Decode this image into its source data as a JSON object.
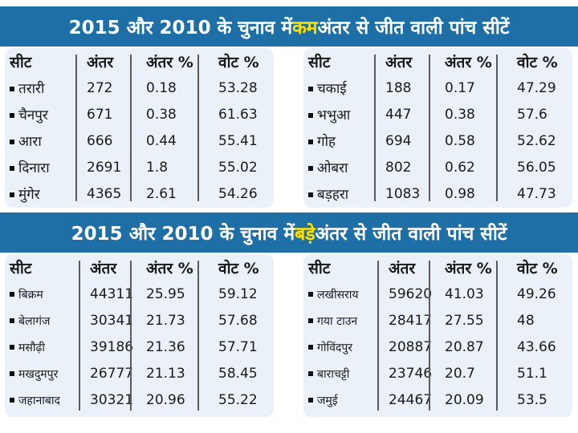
{
  "banners": [
    {
      "pre": "2015 और 2010 के चुनाव में ",
      "highlight": "कम",
      "post": " अंतर से जीत वाली पांच सीटें"
    },
    {
      "pre": "2015 और 2010 के चुनाव में ",
      "highlight": "बड़े",
      "post": " अंतर से जीत वाली पांच सीटें"
    }
  ],
  "headers": [
    "सीट",
    "अंतर",
    "अंतर %",
    "वोट %"
  ],
  "tables": [
    {
      "rows": [
        [
          "तरारी",
          "272",
          "0.18",
          "53.28"
        ],
        [
          "चैनपुर",
          "671",
          "0.38",
          "61.63"
        ],
        [
          "आरा",
          "666",
          "0.44",
          "55.41"
        ],
        [
          "दिनारा",
          "2691",
          "1.8",
          "55.02"
        ],
        [
          "मुंगेर",
          "4365",
          "2.61",
          "54.26"
        ]
      ]
    },
    {
      "rows": [
        [
          "चकाई",
          "188",
          "0.17",
          "47.29"
        ],
        [
          "भभुआ",
          "447",
          "0.38",
          "57.6"
        ],
        [
          "गोह",
          "694",
          "0.58",
          "52.62"
        ],
        [
          "ओबरा",
          "802",
          "0.62",
          "56.05"
        ],
        [
          "बड़हरा",
          "1083",
          "0.98",
          "47.73"
        ]
      ]
    },
    {
      "rows": [
        [
          "बिक्रम",
          "44311",
          "25.95",
          "59.12"
        ],
        [
          "बेलागंज",
          "30341",
          "21.73",
          "57.68"
        ],
        [
          "मसौढ़ी",
          "39186",
          "21.36",
          "57.71"
        ],
        [
          "मखदुमपुर",
          "26777",
          "21.13",
          "58.45"
        ],
        [
          "जहानाबाद",
          "30321",
          "20.96",
          "55.22"
        ]
      ]
    },
    {
      "rows": [
        [
          "लखीसराय",
          "59620",
          "41.03",
          "49.26"
        ],
        [
          "गया टाउन",
          "28417",
          "27.55",
          "48"
        ],
        [
          "गोविंदपुर",
          "20887",
          "20.87",
          "43.66"
        ],
        [
          "बाराचट्टी",
          "23746",
          "20.7",
          "51.1"
        ],
        [
          "जमुई",
          "24467",
          "20.09",
          "53.5"
        ]
      ]
    }
  ]
}
